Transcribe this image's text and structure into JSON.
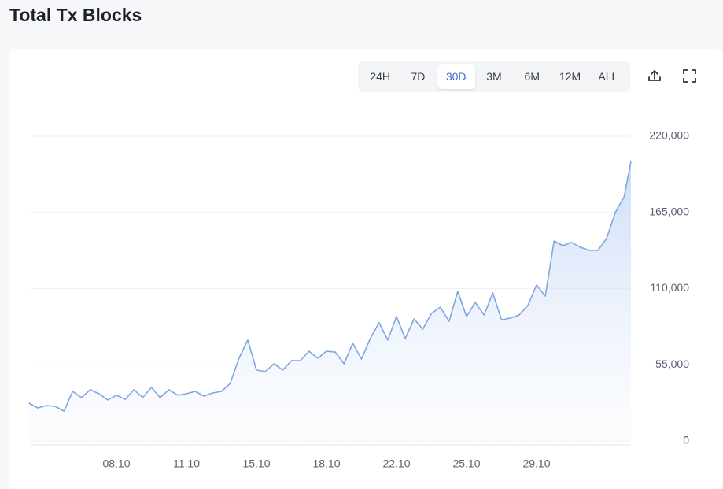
{
  "title": "Total Tx Blocks",
  "toolbar": {
    "ranges": [
      "24H",
      "7D",
      "30D",
      "3M",
      "6M",
      "12M",
      "ALL"
    ],
    "selected": 2
  },
  "chart_data": {
    "type": "area",
    "color": "#7ea6e0",
    "grid": true,
    "categories": [
      null,
      null,
      null,
      null,
      null,
      null,
      null,
      null,
      null,
      null,
      "08.10",
      null,
      null,
      null,
      null,
      null,
      null,
      null,
      "11.10",
      null,
      null,
      null,
      null,
      null,
      null,
      null,
      "15.10",
      null,
      null,
      null,
      null,
      null,
      null,
      null,
      "18.10",
      null,
      null,
      null,
      null,
      null,
      null,
      null,
      "22.10",
      null,
      null,
      null,
      null,
      null,
      null,
      null,
      "25.10",
      null,
      null,
      null,
      null,
      null,
      null,
      null,
      "29.10",
      null,
      null,
      null,
      null,
      null,
      null,
      null,
      null,
      null,
      null,
      null
    ],
    "values": [
      27300,
      23900,
      25600,
      25000,
      21600,
      35800,
      31300,
      37000,
      34100,
      29600,
      33000,
      30100,
      37000,
      31300,
      38700,
      31300,
      37000,
      33000,
      34100,
      35800,
      32400,
      34700,
      35800,
      41500,
      59700,
      72800,
      51200,
      50000,
      55700,
      51200,
      58000,
      58000,
      64800,
      59700,
      64800,
      64200,
      55700,
      70500,
      59100,
      73900,
      85300,
      72800,
      89800,
      73900,
      88100,
      80700,
      92100,
      96600,
      86400,
      108000,
      89800,
      100000,
      90900,
      106900,
      87500,
      88700,
      90900,
      97800,
      112600,
      104600,
      144400,
      141000,
      143300,
      139900,
      137600,
      137600,
      146100,
      164900,
      176200,
      201800
    ],
    "ylim": [
      0,
      220000
    ],
    "yticks": [
      {
        "value": 0,
        "label": "0"
      },
      {
        "value": 55000,
        "label": "55,000"
      },
      {
        "value": 110000,
        "label": "110,000"
      },
      {
        "value": 165000,
        "label": "165,000"
      },
      {
        "value": 220000,
        "label": "220,000"
      }
    ]
  }
}
